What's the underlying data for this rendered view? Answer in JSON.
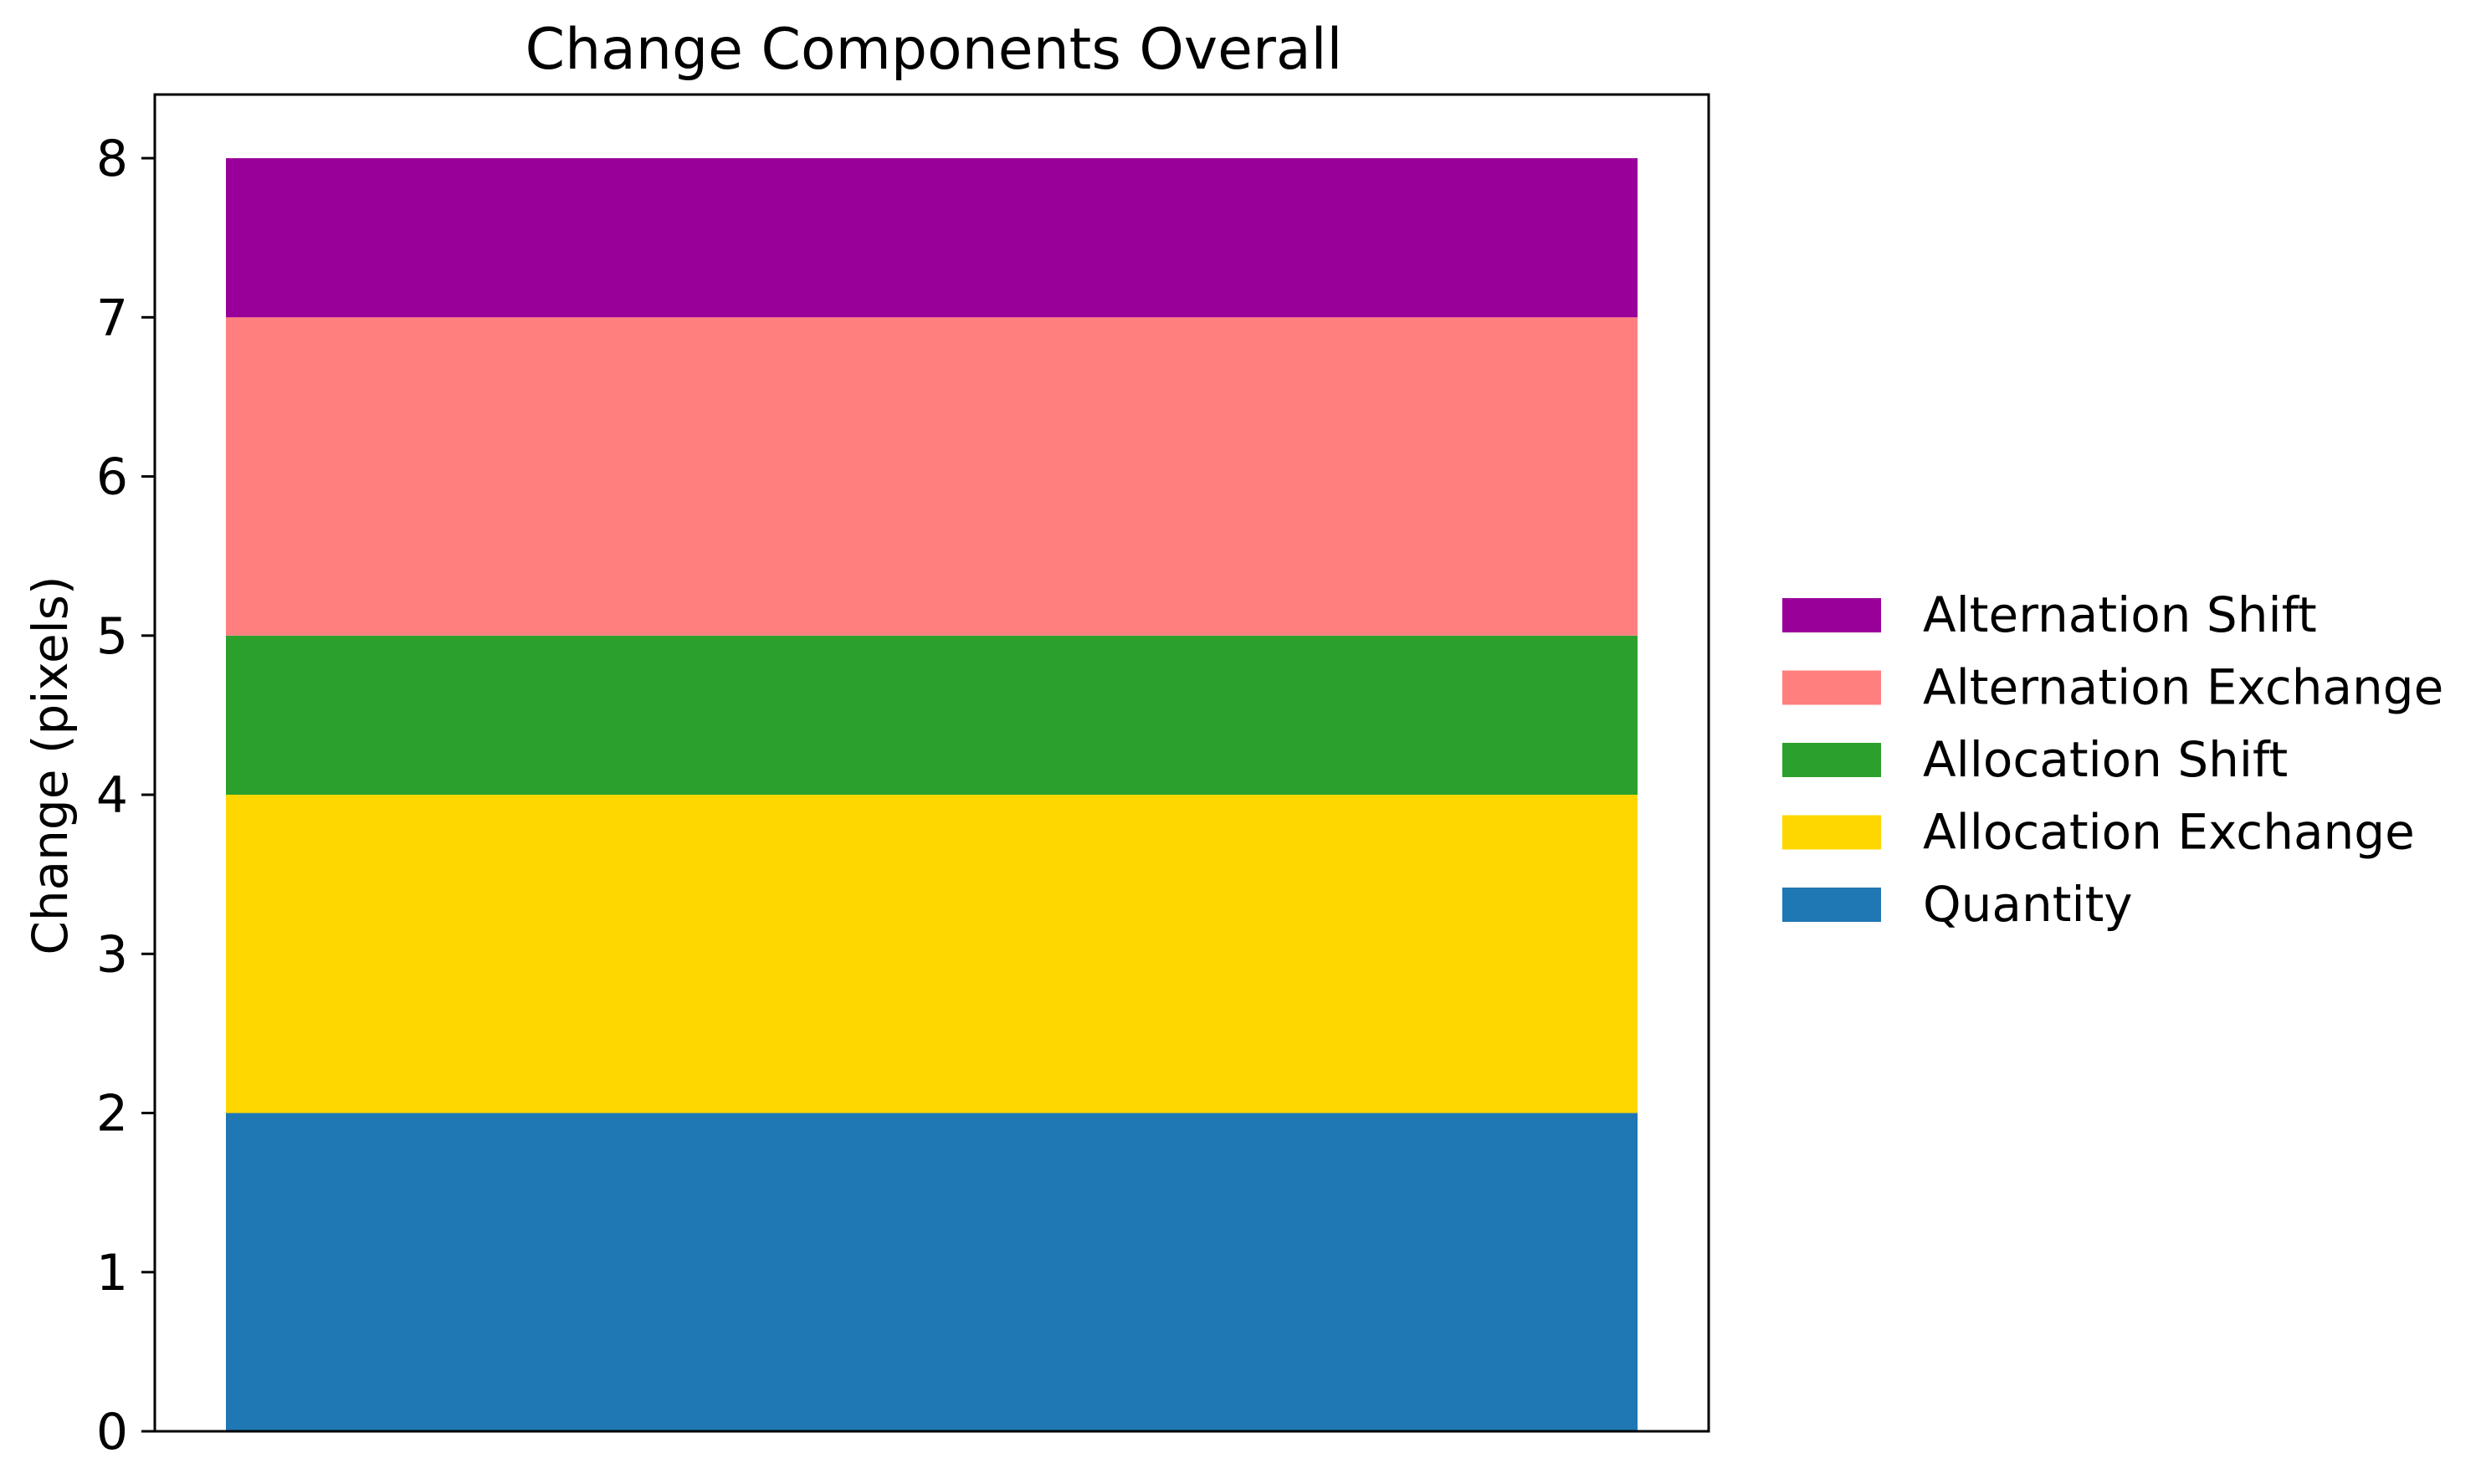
{
  "chart_data": {
    "type": "bar",
    "stacked": true,
    "title": "Change Components Overall",
    "xlabel": "",
    "ylabel": "Change (pixels)",
    "categories": [
      ""
    ],
    "ylim": [
      0,
      8.4
    ],
    "yticks": [
      0,
      1,
      2,
      3,
      4,
      5,
      6,
      7,
      8
    ],
    "grid": false,
    "legend_position": "center-right, outside plot",
    "series": [
      {
        "name": "Quantity",
        "values": [
          2
        ],
        "color": "#1f77b4"
      },
      {
        "name": "Allocation Exchange",
        "values": [
          2
        ],
        "color": "#ffd700"
      },
      {
        "name": "Allocation Shift",
        "values": [
          1
        ],
        "color": "#2ca02c"
      },
      {
        "name": "Alternation Exchange",
        "values": [
          2
        ],
        "color": "#ff7f7f"
      },
      {
        "name": "Alternation Shift",
        "values": [
          1
        ],
        "color": "#990099"
      }
    ]
  }
}
